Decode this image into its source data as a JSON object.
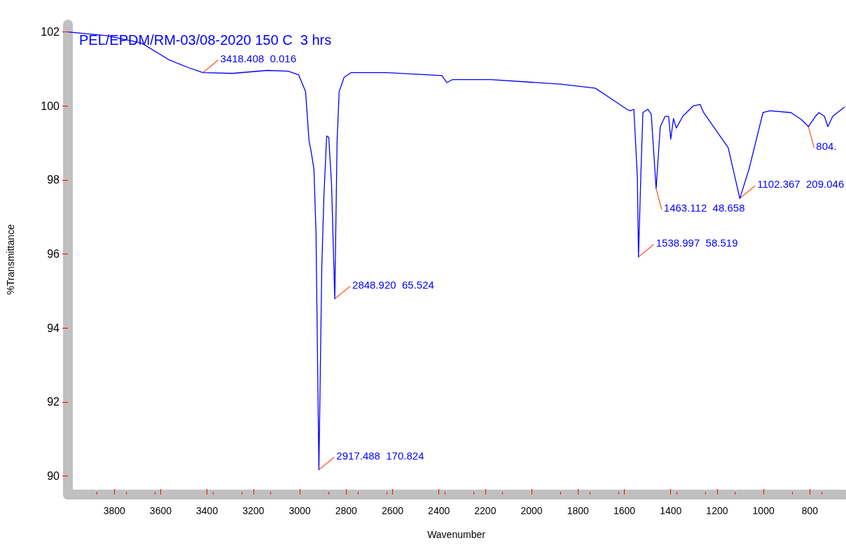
{
  "chart_data": {
    "type": "line",
    "title": "PEL/EPDM/RM-03/08-2020 150 C  3 hrs",
    "xlabel": "Wavenumber",
    "ylabel": "%Transmittance",
    "xlim": [
      4000,
      650
    ],
    "xticks": [
      3800,
      3600,
      3400,
      3200,
      3000,
      2800,
      2600,
      2400,
      2200,
      2000,
      1800,
      1600,
      1400,
      1200,
      1000,
      800
    ],
    "ylim": [
      89.5,
      102.2
    ],
    "yticks": [
      90,
      92,
      94,
      96,
      98,
      100,
      102
    ],
    "grid": false,
    "marker": "none",
    "series": [
      {
        "color": "#0000ff",
        "x": [
          3999,
          3833,
          3683,
          3562,
          3487,
          3418,
          3291,
          3140,
          3050,
          3005,
          2975,
          2960,
          2951,
          2939,
          2930,
          2917.5,
          2905,
          2896,
          2884,
          2875,
          2863,
          2849,
          2839,
          2830,
          2809,
          2779,
          2628,
          2387,
          2366,
          2342,
          2177,
          1875,
          1725,
          1634,
          1589,
          1574,
          1559,
          1544,
          1539,
          1529,
          1520,
          1499,
          1484,
          1463,
          1445,
          1424,
          1409,
          1400,
          1388,
          1376,
          1348,
          1303,
          1273,
          1258,
          1152,
          1102,
          1062,
          1002,
          972,
          881,
          836,
          806,
          776,
          761,
          737,
          722,
          701,
          650
        ],
        "values": [
          102.0,
          101.9,
          101.7,
          101.24,
          101.05,
          100.9,
          100.88,
          100.96,
          100.94,
          100.84,
          100.39,
          99.06,
          98.77,
          98.3,
          96.59,
          90.17,
          95.64,
          97.54,
          99.19,
          99.15,
          97.9,
          94.79,
          99.06,
          100.39,
          100.77,
          100.9,
          100.9,
          100.82,
          100.63,
          100.71,
          100.71,
          100.59,
          100.48,
          100.1,
          99.91,
          99.87,
          99.91,
          98.1,
          95.92,
          98.1,
          99.82,
          99.91,
          99.78,
          97.77,
          99.44,
          99.72,
          99.72,
          99.1,
          99.66,
          99.4,
          99.72,
          100.0,
          100.04,
          99.82,
          98.87,
          97.5,
          98.3,
          99.82,
          99.87,
          99.82,
          99.63,
          99.44,
          99.72,
          99.82,
          99.72,
          99.44,
          99.72,
          99.97
        ]
      }
    ],
    "annotations": [
      {
        "text": "3418.408  0.016",
        "x": 3418.408,
        "y": 100.9
      },
      {
        "text": "2917.488  170.824",
        "x": 2917.488,
        "y": 90.17
      },
      {
        "text": "2848.920  65.524",
        "x": 2848.92,
        "y": 94.79
      },
      {
        "text": "1538.997  58.519",
        "x": 1538.997,
        "y": 95.92
      },
      {
        "text": "1463.112  48.658",
        "x": 1463.112,
        "y": 97.77
      },
      {
        "text": "1102.367  209.046",
        "x": 1102.367,
        "y": 97.5
      },
      {
        "text": "804.",
        "x": 806,
        "y": 99.44
      }
    ]
  }
}
